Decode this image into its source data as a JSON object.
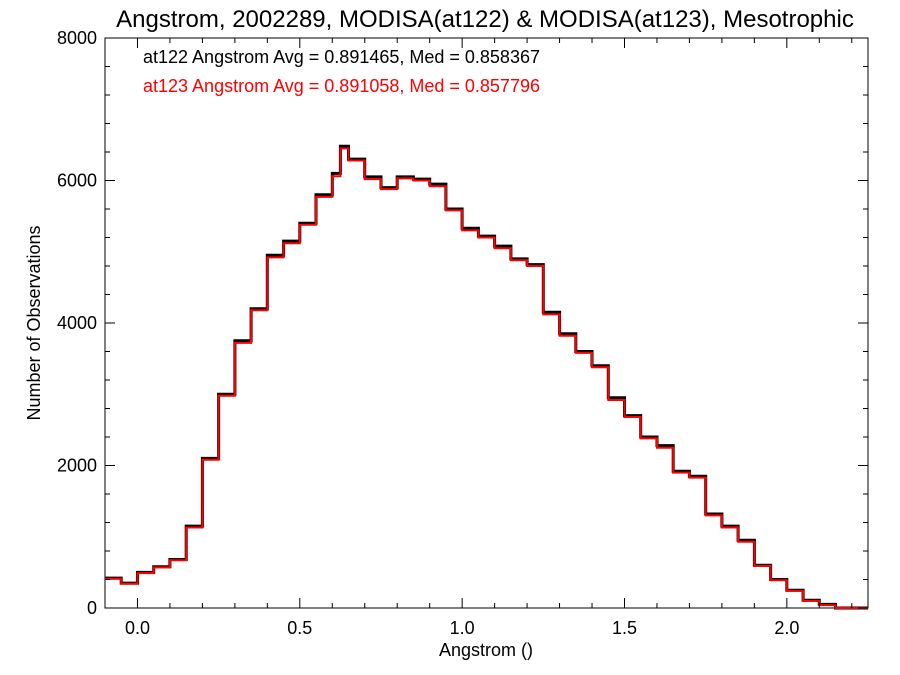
{
  "chart_data": {
    "type": "line",
    "title": "Angstrom, 2002289, MODISA(at122) & MODISA(at123), Mesotrophic",
    "xlabel": "Angstrom ()",
    "ylabel": "Number of Observations",
    "xlim": [
      -0.1,
      2.25
    ],
    "ylim": [
      0,
      8000
    ],
    "xticks": [
      0.0,
      0.5,
      1.0,
      1.5,
      2.0
    ],
    "xtick_labels": [
      "0.0",
      "0.5",
      "1.0",
      "1.5",
      "2.0"
    ],
    "yticks": [
      0,
      2000,
      4000,
      6000,
      8000
    ],
    "ytick_labels": [
      "0",
      "2000",
      "4000",
      "6000",
      "8000"
    ],
    "grid": false,
    "annotations": [
      {
        "text": "at122 Angstrom Avg = 0.891465, Med = 0.858367",
        "color": "#000000"
      },
      {
        "text": "at123 Angstrom Avg = 0.891058, Med = 0.857796",
        "color": "#ff0000"
      }
    ],
    "series": [
      {
        "color": "#000000",
        "x": [
          -0.1,
          -0.05,
          0.0,
          0.05,
          0.1,
          0.15,
          0.2,
          0.25,
          0.3,
          0.35,
          0.4,
          0.45,
          0.5,
          0.55,
          0.6,
          0.625,
          0.65,
          0.7,
          0.75,
          0.8,
          0.85,
          0.9,
          0.95,
          1.0,
          1.05,
          1.1,
          1.15,
          1.2,
          1.25,
          1.3,
          1.35,
          1.4,
          1.45,
          1.5,
          1.55,
          1.6,
          1.65,
          1.7,
          1.75,
          1.8,
          1.85,
          1.9,
          1.95,
          2.0,
          2.05,
          2.1,
          2.15,
          2.2,
          2.25
        ],
        "y": [
          420,
          350,
          500,
          580,
          680,
          1150,
          2100,
          3000,
          3750,
          4200,
          4950,
          5150,
          5400,
          5800,
          6100,
          6480,
          6300,
          6050,
          5900,
          6050,
          6020,
          5950,
          5600,
          5330,
          5220,
          5080,
          4900,
          4820,
          4150,
          3850,
          3600,
          3400,
          2950,
          2700,
          2400,
          2280,
          1920,
          1850,
          1320,
          1150,
          950,
          600,
          400,
          250,
          110,
          50,
          0,
          0,
          0
        ]
      },
      {
        "color": "#ff0000",
        "x": [
          -0.1,
          -0.05,
          0.0,
          0.05,
          0.1,
          0.15,
          0.2,
          0.25,
          0.3,
          0.35,
          0.4,
          0.45,
          0.5,
          0.55,
          0.6,
          0.625,
          0.65,
          0.7,
          0.75,
          0.8,
          0.85,
          0.9,
          0.95,
          1.0,
          1.05,
          1.1,
          1.15,
          1.2,
          1.25,
          1.3,
          1.35,
          1.4,
          1.45,
          1.5,
          1.55,
          1.6,
          1.65,
          1.7,
          1.75,
          1.8,
          1.85,
          1.9,
          1.95,
          2.0,
          2.05,
          2.1,
          2.15,
          2.2,
          2.25
        ],
        "y": [
          410,
          340,
          490,
          570,
          670,
          1130,
          2080,
          2980,
          3720,
          4180,
          4920,
          5120,
          5380,
          5770,
          6060,
          6450,
          6280,
          6020,
          5880,
          6030,
          6000,
          5920,
          5580,
          5300,
          5200,
          5050,
          4880,
          4800,
          4120,
          3820,
          3580,
          3380,
          2920,
          2680,
          2380,
          2250,
          1900,
          1830,
          1300,
          1130,
          930,
          590,
          390,
          240,
          100,
          40,
          0,
          0,
          0
        ]
      }
    ]
  }
}
